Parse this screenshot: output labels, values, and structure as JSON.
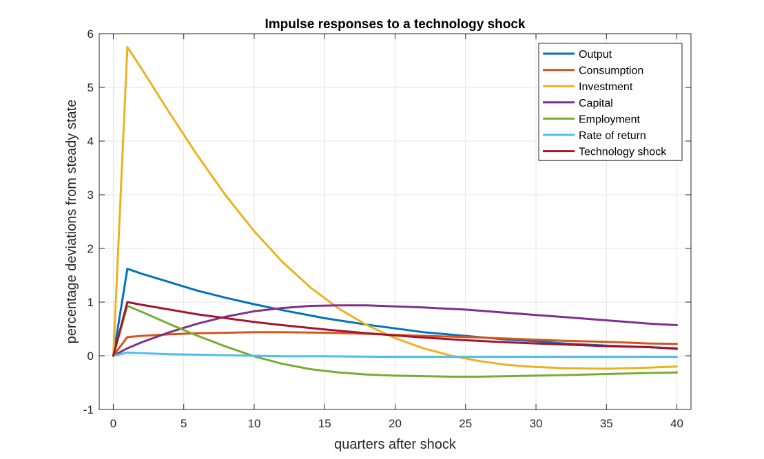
{
  "chart_data": {
    "type": "line",
    "title": "Impulse responses to a technology shock",
    "xlabel": "quarters after shock",
    "ylabel": "percentage deviations from steady state",
    "xlim": [
      -1,
      41
    ],
    "ylim": [
      -1,
      6
    ],
    "xticks": [
      0,
      5,
      10,
      15,
      20,
      25,
      30,
      35,
      40
    ],
    "yticks": [
      -1,
      0,
      1,
      2,
      3,
      4,
      5,
      6
    ],
    "grid": true,
    "legend_position": "top-right",
    "series": [
      {
        "name": "Output",
        "color": "#0072BD",
        "x": [
          0,
          1,
          2,
          4,
          6,
          8,
          10,
          12,
          15,
          18,
          20,
          22,
          25,
          28,
          30,
          32,
          35,
          38,
          40
        ],
        "y": [
          0,
          1.62,
          1.53,
          1.37,
          1.21,
          1.08,
          0.96,
          0.85,
          0.7,
          0.58,
          0.51,
          0.44,
          0.37,
          0.3,
          0.27,
          0.23,
          0.19,
          0.16,
          0.14
        ]
      },
      {
        "name": "Consumption",
        "color": "#D95319",
        "x": [
          0,
          1,
          2,
          4,
          6,
          8,
          10,
          12,
          15,
          18,
          20,
          22,
          25,
          28,
          30,
          32,
          35,
          38,
          40
        ],
        "y": [
          0,
          0.35,
          0.37,
          0.4,
          0.42,
          0.43,
          0.44,
          0.44,
          0.43,
          0.41,
          0.39,
          0.37,
          0.35,
          0.32,
          0.3,
          0.28,
          0.26,
          0.23,
          0.22
        ]
      },
      {
        "name": "Investment",
        "color": "#EDB120",
        "x": [
          0,
          1,
          2,
          4,
          6,
          8,
          10,
          12,
          14,
          16,
          18,
          20,
          22,
          24,
          26,
          28,
          30,
          32,
          35,
          38,
          40
        ],
        "y": [
          0,
          5.75,
          5.35,
          4.52,
          3.72,
          2.98,
          2.32,
          1.75,
          1.27,
          0.88,
          0.57,
          0.33,
          0.14,
          -0.0,
          -0.1,
          -0.17,
          -0.21,
          -0.23,
          -0.24,
          -0.22,
          -0.2
        ]
      },
      {
        "name": "Capital",
        "color": "#7E2F8E",
        "x": [
          0,
          1,
          2,
          4,
          6,
          8,
          10,
          12,
          14,
          16,
          18,
          20,
          22,
          25,
          28,
          30,
          32,
          35,
          38,
          40
        ],
        "y": [
          0,
          0.14,
          0.25,
          0.44,
          0.6,
          0.73,
          0.83,
          0.89,
          0.93,
          0.94,
          0.94,
          0.92,
          0.9,
          0.86,
          0.8,
          0.76,
          0.72,
          0.66,
          0.6,
          0.57
        ]
      },
      {
        "name": "Employment",
        "color": "#77AC30",
        "x": [
          0,
          1,
          2,
          4,
          6,
          8,
          10,
          12,
          14,
          16,
          18,
          20,
          22,
          24,
          26,
          28,
          30,
          32,
          35,
          38,
          40
        ],
        "y": [
          0,
          0.93,
          0.82,
          0.59,
          0.37,
          0.17,
          -0.01,
          -0.15,
          -0.25,
          -0.31,
          -0.35,
          -0.37,
          -0.38,
          -0.39,
          -0.39,
          -0.38,
          -0.37,
          -0.36,
          -0.34,
          -0.32,
          -0.31
        ]
      },
      {
        "name": "Rate of return",
        "color": "#4DBEEE",
        "x": [
          0,
          1,
          2,
          4,
          6,
          8,
          10,
          12,
          15,
          20,
          25,
          30,
          35,
          40
        ],
        "y": [
          0,
          0.06,
          0.05,
          0.03,
          0.02,
          0.01,
          0.0,
          -0.01,
          -0.01,
          -0.02,
          -0.02,
          -0.02,
          -0.02,
          -0.02
        ]
      },
      {
        "name": "Technology shock",
        "color": "#A2142F",
        "x": [
          0,
          1,
          2,
          4,
          6,
          8,
          10,
          12,
          15,
          18,
          20,
          22,
          25,
          28,
          30,
          32,
          35,
          38,
          40
        ],
        "y": [
          0,
          1.0,
          0.95,
          0.86,
          0.77,
          0.7,
          0.63,
          0.57,
          0.49,
          0.42,
          0.38,
          0.34,
          0.29,
          0.25,
          0.23,
          0.21,
          0.18,
          0.16,
          0.13
        ]
      }
    ]
  }
}
